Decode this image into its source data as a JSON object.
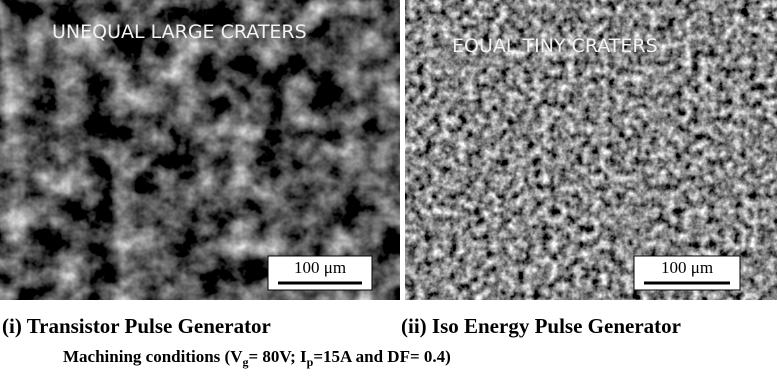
{
  "panels": [
    {
      "label": "UNEQUAL LARGE CRATERS",
      "scale_bar": "100 μm",
      "caption": "(i) Transistor Pulse Generator"
    },
    {
      "label": "EQUAL TINY CRATERS",
      "scale_bar": "100 μm",
      "caption": "(ii) Iso Energy Pulse Generator"
    }
  ],
  "caption": {
    "prefix": "Machining conditions (V",
    "sub1": "g",
    "mid": "= 80V; I",
    "sub2": "p",
    "suffix": "=15A and DF= 0.4)"
  }
}
